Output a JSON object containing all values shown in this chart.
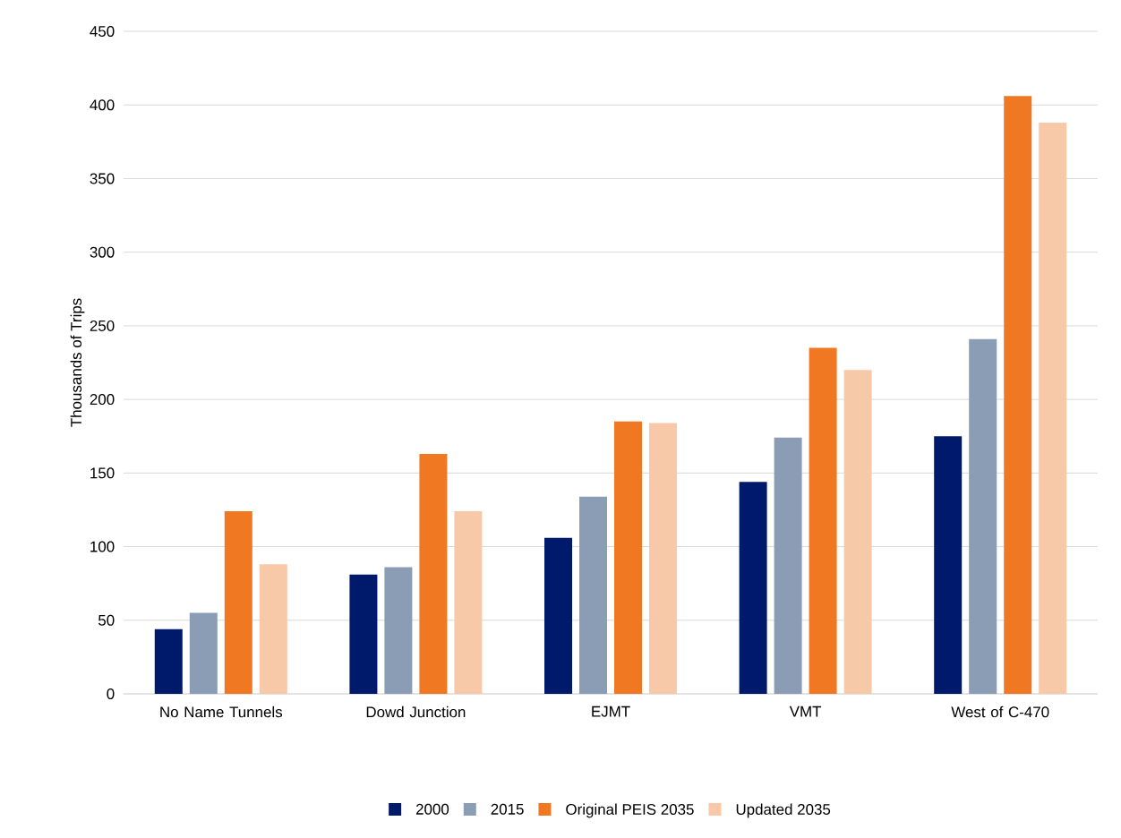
{
  "chart_data": {
    "type": "bar",
    "ylabel": "Thousands of Trips",
    "categories": [
      "No Name Tunnels",
      "Dowd Junction",
      "EJMT",
      "VMT",
      "West of C-470"
    ],
    "series": [
      {
        "name": "2000",
        "color": "#001a6b",
        "values": [
          44,
          81,
          106,
          144,
          175
        ]
      },
      {
        "name": "2015",
        "color": "#8a9db5",
        "values": [
          55,
          86,
          134,
          174,
          241
        ]
      },
      {
        "name": "Original PEIS 2035",
        "color": "#f07822",
        "values": [
          124,
          163,
          185,
          235,
          406
        ]
      },
      {
        "name": "Updated 2035",
        "color": "#f8c9a8",
        "values": [
          88,
          124,
          184,
          220,
          388
        ]
      }
    ],
    "ylim": [
      0,
      450
    ],
    "yticks": [
      0,
      50,
      100,
      150,
      200,
      250,
      300,
      350,
      400,
      450
    ],
    "grid": "y",
    "legend": "bottom"
  }
}
